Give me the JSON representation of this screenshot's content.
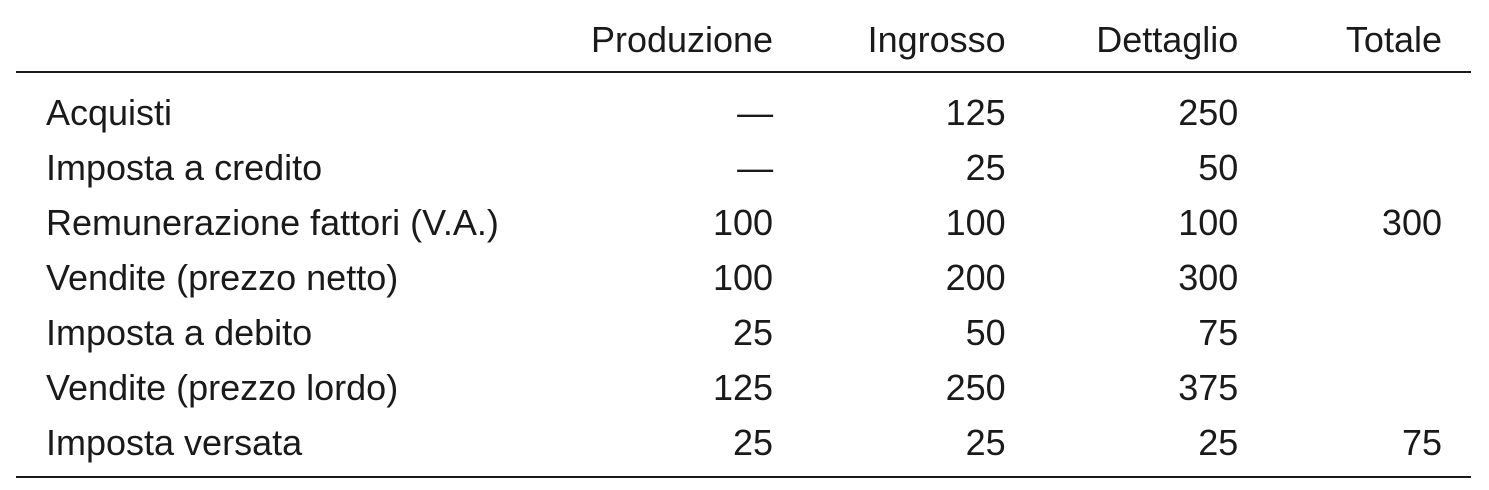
{
  "table": {
    "columns": [
      "",
      "Produzione",
      "Ingrosso",
      "Dettaglio",
      "Totale"
    ],
    "rows": [
      {
        "label": "Acquisti",
        "produzione": "—",
        "ingrosso": "125",
        "dettaglio": "250",
        "totale": ""
      },
      {
        "label": "Imposta a credito",
        "produzione": "—",
        "ingrosso": "25",
        "dettaglio": "50",
        "totale": ""
      },
      {
        "label": "Remunerazione fattori (V.A.)",
        "produzione": "100",
        "ingrosso": "100",
        "dettaglio": "100",
        "totale": "300"
      },
      {
        "label": "Vendite (prezzo netto)",
        "produzione": "100",
        "ingrosso": "200",
        "dettaglio": "300",
        "totale": ""
      },
      {
        "label": "Imposta a debito",
        "produzione": "25",
        "ingrosso": "50",
        "dettaglio": "75",
        "totale": ""
      },
      {
        "label": "Vendite (prezzo lordo)",
        "produzione": "125",
        "ingrosso": "250",
        "dettaglio": "375",
        "totale": ""
      },
      {
        "label": "Imposta versata",
        "produzione": "25",
        "ingrosso": "25",
        "dettaglio": "25",
        "totale": "75"
      }
    ]
  }
}
